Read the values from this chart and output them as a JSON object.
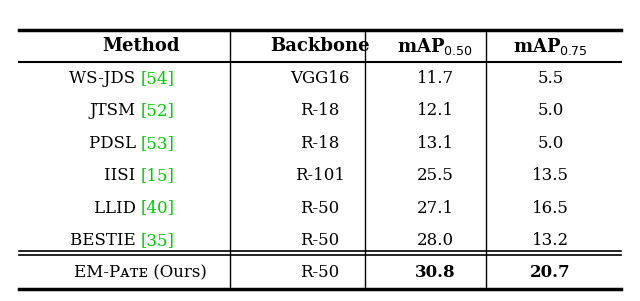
{
  "header_labels": [
    "Method",
    "Backbone",
    "mAP$_{0.50}$",
    "mAP$_{0.75}$"
  ],
  "rows": [
    [
      "WS-JDS ",
      "[54]",
      "VGG16",
      "11.7",
      "5.5"
    ],
    [
      "JTSM ",
      "[52]",
      "R-18",
      "12.1",
      "5.0"
    ],
    [
      "PDSL ",
      "[53]",
      "R-18",
      "13.1",
      "5.0"
    ],
    [
      "IISI ",
      "[15]",
      "R-101",
      "25.5",
      "13.5"
    ],
    [
      "LLID ",
      "[40]",
      "R-50",
      "27.1",
      "16.5"
    ],
    [
      "BESTIE ",
      "[35]",
      "R-50",
      "28.0",
      "13.2"
    ]
  ],
  "last_row": [
    "EM-Pᴀᴛᴇ (Ours)",
    "R-50",
    "30.8",
    "20.7"
  ],
  "text_color": "#000000",
  "green_color": "#00CC00",
  "background_color": "#ffffff",
  "header_fontsize": 13,
  "body_fontsize": 12,
  "figsize": [
    6.4,
    3.01
  ],
  "dpi": 100
}
